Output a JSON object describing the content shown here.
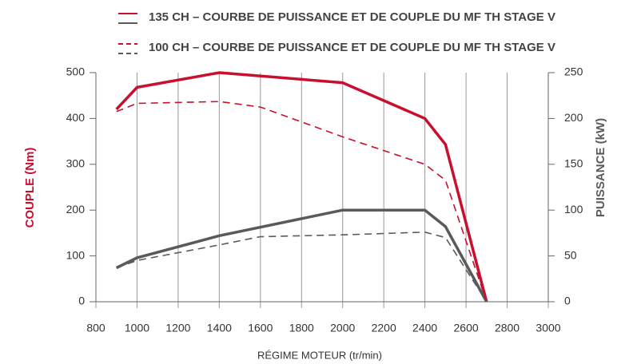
{
  "chart_data": {
    "type": "line",
    "xlabel": "RÉGIME MOTEUR (tr/min)",
    "ylabel": "COUPLE (Nm)",
    "y2label": "PUISSANCE (kW)",
    "xlim": [
      800,
      3000
    ],
    "xticks": [
      800,
      1000,
      1200,
      1400,
      1600,
      1800,
      2000,
      2200,
      2400,
      2600,
      2800,
      3000
    ],
    "ylim": [
      0,
      500
    ],
    "yticks": [
      0,
      100,
      200,
      300,
      400,
      500
    ],
    "y2lim": [
      0,
      250
    ],
    "y2ticks": [
      0,
      50,
      100,
      150,
      200,
      250
    ],
    "grid": "x",
    "series": [
      {
        "name": "135 CH – COURBE DE PUISSANCE ET DE COUPLE DU MF TH STAGE V",
        "color": "#c8102e",
        "style": "solid",
        "axis": "y",
        "x": [
          900,
          1000,
          1400,
          2000,
          2400,
          2500,
          2700
        ],
        "values": [
          420,
          468,
          500,
          478,
          400,
          343,
          0
        ]
      },
      {
        "color": "#5a5a5a",
        "style": "solid",
        "axis": "y2",
        "x": [
          900,
          1000,
          1400,
          2000,
          2400,
          2500,
          2700
        ],
        "values": [
          37,
          48,
          72,
          100,
          100,
          82,
          0
        ]
      },
      {
        "name": "100 CH – COURBE DE PUISSANCE ET DE COUPLE DU MF TH STAGE V",
        "color": "#c8102e",
        "style": "dashed",
        "axis": "y",
        "x": [
          900,
          1000,
          1400,
          1600,
          2000,
          2400,
          2500,
          2700
        ],
        "values": [
          415,
          433,
          437,
          425,
          360,
          300,
          265,
          0
        ]
      },
      {
        "color": "#5a5a5a",
        "style": "dashed",
        "axis": "y2",
        "x": [
          900,
          1000,
          1400,
          1600,
          2000,
          2400,
          2500,
          2700
        ],
        "values": [
          37,
          45,
          62,
          71,
          73,
          76,
          70,
          0
        ]
      }
    ]
  }
}
